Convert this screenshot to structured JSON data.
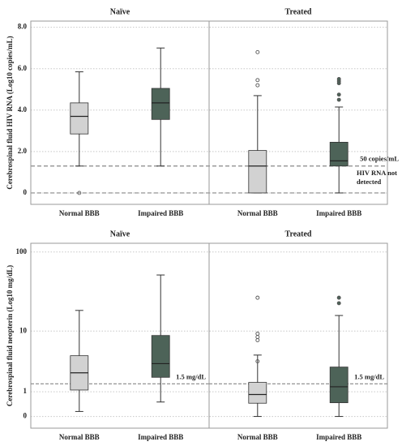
{
  "chart_data": [
    {
      "type": "box",
      "y_label": "Cerebrospinal fluid HIV RNA (Log10 copies/mL)",
      "yscale": "linear",
      "ylim": [
        -0.55,
        8.3
      ],
      "yticks": [
        0,
        {
          "value": 2,
          "label": "2.0"
        },
        {
          "value": 4,
          "label": "4.0"
        },
        {
          "value": 6,
          "label": "6.0"
        },
        {
          "value": 8,
          "label": "8.0"
        }
      ],
      "grid": true,
      "categories": [
        "Normal BBB",
        "Impaired BBB"
      ],
      "colors": [
        "#d2d2d2",
        "#4d6358"
      ],
      "reference_lines": [
        {
          "value": 1.3,
          "label": "50 copies/mL"
        },
        {
          "value": 0,
          "label": "HIV RNA not detected"
        }
      ],
      "panels": [
        {
          "title": "Naïve",
          "boxes": [
            {
              "min": 1.3,
              "q1": 2.85,
              "median": 3.7,
              "q3": 4.35,
              "max": 5.85,
              "outliers": [
                0
              ]
            },
            {
              "min": 1.3,
              "q1": 3.55,
              "median": 4.35,
              "q3": 5.05,
              "max": 7.0,
              "outliers": []
            }
          ]
        },
        {
          "title": "Treated",
          "boxes": [
            {
              "min": 0,
              "q1": 0,
              "median": 1.3,
              "q3": 2.05,
              "max": 4.7,
              "outliers": [
                5.2,
                5.45,
                6.8
              ]
            },
            {
              "min": 0,
              "q1": 1.3,
              "median": 1.55,
              "q3": 2.45,
              "max": 4.15,
              "outliers": [
                4.5,
                4.75,
                5.3,
                5.4,
                5.5
              ]
            }
          ]
        }
      ]
    },
    {
      "type": "box",
      "y_label": "Cerebrospinal fluid neopterin (Log10 mg/dL)",
      "yscale": "log1p",
      "ylim": [
        -0.28,
        128
      ],
      "yticks": [
        0,
        1,
        10,
        100
      ],
      "grid": true,
      "categories": [
        "Normal BBB",
        "Impaired BBB"
      ],
      "colors": [
        "#d2d2d2",
        "#4d6358"
      ],
      "panels": [
        {
          "title": "Naïve",
          "reference_lines": [
            {
              "value": 1.5,
              "label": "1.5 mg/dL"
            }
          ],
          "boxes": [
            {
              "min": 0.15,
              "q1": 1.1,
              "median": 2.4,
              "q3": 4.5,
              "max": 18.6,
              "outliers": []
            },
            {
              "min": 0.5,
              "q1": 2.0,
              "median": 3.4,
              "q3": 8.7,
              "max": 52,
              "outliers": []
            }
          ]
        },
        {
          "title": "Treated",
          "reference_lines": [
            {
              "value": 1.5,
              "label": "1.5 mg/dL"
            }
          ],
          "boxes": [
            {
              "min": 0,
              "q1": 0.45,
              "median": 0.85,
              "q3": 1.6,
              "max": 4.6,
              "outliers": [
                3.7,
                7.5,
                8.3,
                9.2,
                27
              ]
            },
            {
              "min": 0,
              "q1": 0.47,
              "median": 1.3,
              "q3": 3.0,
              "max": 16,
              "outliers": [
                23,
                27
              ]
            }
          ]
        }
      ]
    }
  ]
}
